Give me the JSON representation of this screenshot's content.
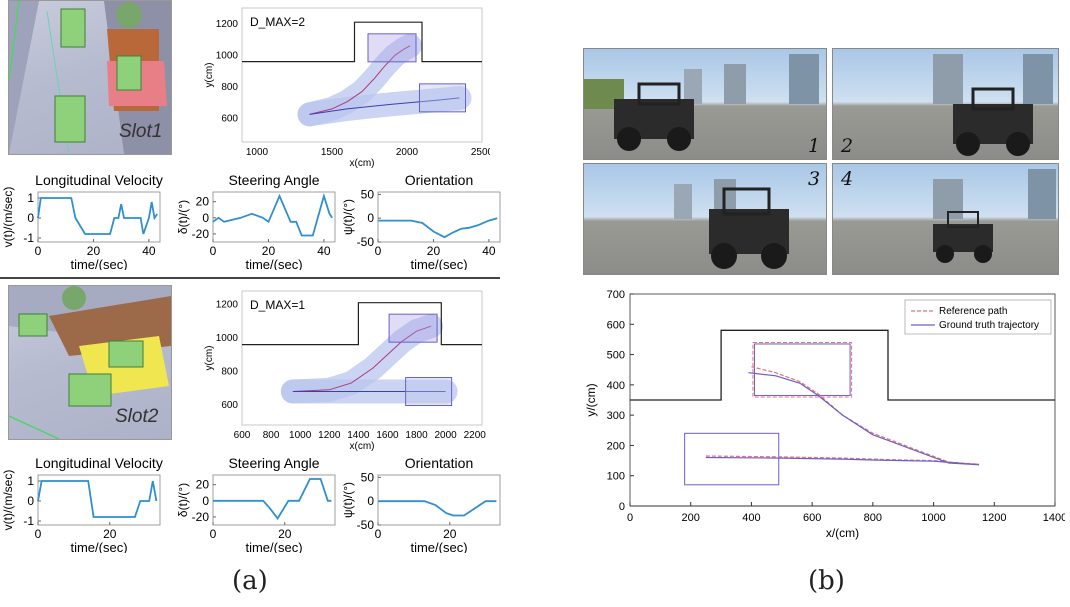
{
  "captions": {
    "a": "(a)",
    "b": "(b)"
  },
  "slot1": {
    "scene_label": "Slot1",
    "trajectory": {
      "type": "line",
      "annotation": "D_MAX=2",
      "xlabel": "x(cm)",
      "ylabel": "y(cm)",
      "xlim": [
        900,
        2500
      ],
      "ylim": [
        450,
        1300
      ],
      "xticks": [
        1000,
        1500,
        2000,
        2500
      ],
      "yticks": [
        600,
        800,
        1000,
        1200
      ],
      "boundary": {
        "x": [
          900,
          1650,
          1650,
          2100,
          2100,
          2500
        ],
        "y": [
          960,
          960,
          1210,
          1210,
          960,
          960
        ]
      },
      "path": {
        "x": [
          1350,
          1500,
          1600,
          1700,
          1780,
          1850,
          1920,
          1980,
          2020
        ],
        "y": [
          625,
          660,
          705,
          770,
          850,
          930,
          1000,
          1040,
          1060
        ]
      },
      "path2": {
        "x": [
          1350,
          1600,
          1900,
          2200,
          2350
        ],
        "y": [
          625,
          660,
          690,
          715,
          730
        ]
      }
    },
    "velocity": {
      "type": "line",
      "title": "Longitudinal Velocity",
      "xlabel": "time/(sec)",
      "ylabel": "v(t)/(m/sec)",
      "xlim": [
        0,
        44
      ],
      "ylim": [
        -1.2,
        1.3
      ],
      "xticks": [
        0,
        20,
        40
      ],
      "yticks": [
        -1,
        0,
        1
      ],
      "x": [
        0,
        1,
        12,
        13.5,
        17,
        18.5,
        26,
        27.5,
        29,
        30,
        31,
        32,
        33,
        37,
        38,
        40,
        41,
        42,
        43
      ],
      "y": [
        0,
        1,
        1,
        0,
        -0.8,
        -0.8,
        -0.8,
        0,
        0,
        0.7,
        0,
        0,
        0,
        0,
        -0.8,
        0,
        0.8,
        0,
        0.2
      ]
    },
    "steering": {
      "type": "line",
      "title": "Steering Angle",
      "xlabel": "time/(sec)",
      "ylabel": "δ(t)/(°)",
      "xlim": [
        0,
        44
      ],
      "ylim": [
        -30,
        32
      ],
      "xticks": [
        0,
        20,
        40
      ],
      "yticks": [
        -20,
        0,
        20
      ],
      "x": [
        0,
        2,
        4,
        10,
        14,
        18,
        20,
        24,
        28,
        30,
        32,
        36,
        40,
        42,
        43
      ],
      "y": [
        -5,
        0,
        -5,
        0,
        5,
        0,
        -5,
        27,
        -5,
        -5,
        -22,
        -22,
        27,
        5,
        0
      ]
    },
    "orientation": {
      "type": "line",
      "title": "Orientation",
      "xlabel": "time/(sec)",
      "ylabel": "ψ(t)/(°)",
      "xlim": [
        0,
        44
      ],
      "ylim": [
        -50,
        55
      ],
      "xticks": [
        0,
        20,
        40
      ],
      "yticks": [
        -50,
        0,
        50
      ],
      "x": [
        0,
        12,
        16,
        20,
        24,
        27,
        30,
        33,
        36,
        40,
        43
      ],
      "y": [
        -5,
        -5,
        -10,
        -28,
        -40,
        -30,
        -22,
        -20,
        -15,
        -5,
        0
      ]
    }
  },
  "slot2": {
    "scene_label": "Slot2",
    "trajectory": {
      "type": "line",
      "annotation": "D_MAX=1",
      "xlabel": "x(cm)",
      "ylabel": "y(cm)",
      "xlim": [
        600,
        2250
      ],
      "ylim": [
        480,
        1280
      ],
      "xticks": [
        600,
        800,
        1000,
        1200,
        1400,
        1600,
        1800,
        2000,
        2200
      ],
      "yticks": [
        600,
        800,
        1000,
        1200
      ],
      "boundary": {
        "x": [
          600,
          1400,
          1400,
          1970,
          1970,
          2250
        ],
        "y": [
          960,
          960,
          1210,
          1210,
          960,
          960
        ]
      },
      "path": {
        "x": [
          950,
          1200,
          1350,
          1500,
          1600,
          1700,
          1800,
          1900
        ],
        "y": [
          680,
          690,
          730,
          820,
          900,
          980,
          1040,
          1070
        ]
      },
      "path2": {
        "x": [
          950,
          1400,
          1800,
          2000
        ],
        "y": [
          680,
          680,
          680,
          680
        ]
      }
    },
    "velocity": {
      "type": "line",
      "title": "Longitudinal Velocity",
      "xlabel": "time/(sec)",
      "ylabel": "v(t)/(m/sec)",
      "xlim": [
        0,
        34
      ],
      "ylim": [
        -1.2,
        1.3
      ],
      "xticks": [
        0,
        20
      ],
      "yticks": [
        -1,
        0,
        1
      ],
      "x": [
        0,
        1,
        14,
        15.5,
        27,
        28.5,
        31,
        32,
        33
      ],
      "y": [
        0,
        1,
        1,
        -0.8,
        -0.8,
        0,
        0,
        1,
        0
      ]
    },
    "steering": {
      "type": "line",
      "title": "Steering Angle",
      "xlabel": "time/(sec)",
      "ylabel": "δ(t)/(°)",
      "xlim": [
        0,
        34
      ],
      "ylim": [
        -30,
        32
      ],
      "xticks": [
        0,
        20
      ],
      "yticks": [
        -20,
        0,
        20
      ],
      "x": [
        0,
        12,
        14,
        16,
        18,
        21,
        24,
        27,
        30,
        32,
        33
      ],
      "y": [
        0,
        0,
        0,
        -10,
        -22,
        0,
        0,
        27,
        27,
        0,
        0
      ]
    },
    "orientation": {
      "type": "line",
      "title": "Orientation",
      "xlabel": "time/(sec)",
      "ylabel": "ψ(t)/(°)",
      "xlim": [
        0,
        34
      ],
      "ylim": [
        -50,
        55
      ],
      "xticks": [
        0,
        20
      ],
      "yticks": [
        -50,
        0,
        50
      ],
      "x": [
        0,
        13,
        16,
        19,
        21,
        24,
        27,
        30,
        33
      ],
      "y": [
        0,
        0,
        -8,
        -25,
        -30,
        -30,
        -15,
        0,
        0
      ]
    }
  },
  "photos": {
    "labels": [
      "1",
      "2",
      "3",
      "4"
    ]
  },
  "chart_data": {
    "type": "line",
    "xlabel": "x/(cm)",
    "ylabel": "y/(cm)",
    "xlim": [
      0,
      1400
    ],
    "ylim": [
      0,
      700
    ],
    "xticks": [
      0,
      200,
      400,
      600,
      800,
      1000,
      1200,
      1400
    ],
    "yticks": [
      0,
      100,
      200,
      300,
      400,
      500,
      600,
      700
    ],
    "legend_position": "top-right",
    "boundary": {
      "x": [
        0,
        300,
        300,
        850,
        850,
        1400
      ],
      "y": [
        350,
        350,
        580,
        580,
        350,
        350
      ]
    },
    "series": [
      {
        "name": "Reference path",
        "color": "#e8707a",
        "x": [
          250,
          500,
          700,
          800,
          900,
          1000,
          1100,
          1150,
          1050,
          800,
          700,
          620,
          560,
          480,
          400
        ],
        "y": [
          165,
          162,
          158,
          155,
          152,
          150,
          140,
          138,
          145,
          240,
          300,
          370,
          410,
          440,
          460
        ]
      },
      {
        "name": "Ground truth trajectory",
        "color": "#6b5fc7",
        "x": [
          250,
          500,
          700,
          800,
          900,
          1000,
          1100,
          1150,
          1050,
          800,
          700,
          620,
          560,
          480,
          390
        ],
        "y": [
          160,
          158,
          155,
          152,
          150,
          148,
          140,
          136,
          142,
          235,
          300,
          365,
          405,
          430,
          440
        ]
      }
    ]
  }
}
